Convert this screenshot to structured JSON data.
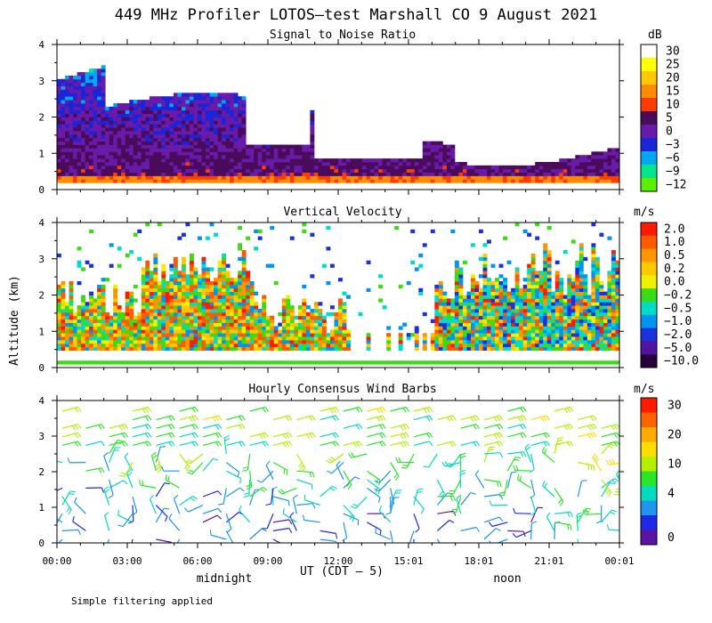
{
  "figure": {
    "title": "449 MHz Profiler LOTOS–test Marshall CO  9 August 2021",
    "y_label": "Altitude (km)",
    "x_label": "UT  (CDT – 5)",
    "local_labels": [
      "midnight",
      "noon"
    ],
    "footer_note": "Simple filtering applied"
  },
  "chart_data": [
    {
      "type": "heatmap",
      "title": "Signal to Noise Ratio",
      "units": "dB",
      "ylabel": "Altitude (km)",
      "ylim": [
        0,
        4
      ],
      "yticks": [
        "0",
        "1",
        "2",
        "3",
        "4"
      ],
      "xticks": [
        "00:00",
        "03:00",
        "06:00",
        "09:00",
        "12:00",
        "15:01",
        "18:01",
        "21:01",
        "00:01"
      ],
      "colorbar": {
        "labels": [
          "30",
          "25",
          "20",
          "15",
          "10",
          "5",
          "0",
          "−3",
          "−6",
          "−9",
          "−12"
        ],
        "colors": [
          "#ffffff",
          "#ffff00",
          "#ffc800",
          "#ff8c00",
          "#ff3c00",
          "#4a0c5a",
          "#6a1aa8",
          "#1a24d8",
          "#00a8f0",
          "#00e68c",
          "#5af000"
        ]
      }
    },
    {
      "type": "heatmap",
      "title": "Vertical Velocity",
      "units": "m/s",
      "ylabel": "Altitude (km)",
      "ylim": [
        0,
        4
      ],
      "yticks": [
        "0",
        "1",
        "2",
        "3",
        "4"
      ],
      "xticks": [
        "00:00",
        "03:00",
        "06:00",
        "09:00",
        "12:00",
        "15:01",
        "18:01",
        "21:01",
        "00:01"
      ],
      "colorbar": {
        "labels": [
          "2.0",
          "1.0",
          "0.5",
          "0.2",
          "0.0",
          "−0.2",
          "−0.5",
          "−1.0",
          "−2.0",
          "−5.0",
          "−10.0"
        ],
        "colors": [
          "#ff1a00",
          "#ff5a00",
          "#ff9600",
          "#ffc800",
          "#f0f000",
          "#3cdc14",
          "#00dcc8",
          "#0096f0",
          "#1a32dc",
          "#5014a0",
          "#28003c"
        ]
      }
    },
    {
      "type": "wind_barbs",
      "title": "Hourly Consensus Wind Barbs",
      "units": "m/s",
      "ylabel": "Altitude (km)",
      "ylim": [
        0,
        4
      ],
      "yticks": [
        "0",
        "1",
        "2",
        "3",
        "4"
      ],
      "xticks": [
        "00:00",
        "03:00",
        "06:00",
        "09:00",
        "12:00",
        "15:01",
        "18:01",
        "21:01",
        "00:01"
      ],
      "colorbar": {
        "labels": [
          "30",
          "20",
          "10",
          "4",
          "0"
        ],
        "colors": [
          "#ff1a00",
          "#ff6400",
          "#ffaa00",
          "#ffdc00",
          "#b4f000",
          "#28e628",
          "#00dcbe",
          "#1e96f0",
          "#1e28e6",
          "#5a14a0"
        ]
      }
    }
  ]
}
